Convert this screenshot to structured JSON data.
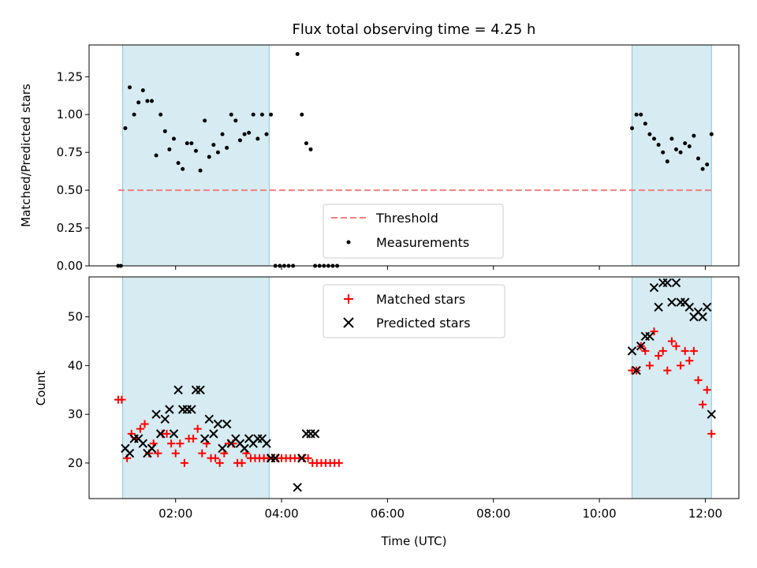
{
  "chart_data": [
    {
      "type": "scatter",
      "title": "Flux total observing time = 4.25 h",
      "xlabel": "",
      "ylabel": "Matched/Predicted stars",
      "x_unit": "hours UTC",
      "xlim": [
        "00:22",
        "12:38"
      ],
      "ylim": [
        0,
        1.46
      ],
      "yticks": [
        "0.00",
        "0.25",
        "0.50",
        "0.75",
        "1.00",
        "1.25"
      ],
      "legend_position": "lower-center",
      "shaded_intervals": [
        {
          "start": "01:00",
          "end": "03:46"
        },
        {
          "start": "10:37",
          "end": "12:07"
        }
      ],
      "threshold": {
        "name": "Threshold",
        "value": 0.5,
        "from": "00:55",
        "to": "12:07",
        "color": "#f08080",
        "style": "dashed"
      },
      "series": [
        {
          "name": "Measurements",
          "color": "#000000",
          "marker": "dot",
          "points": [
            [
              "00:55",
              0.0
            ],
            [
              "00:58",
              0.0
            ],
            [
              "01:03",
              0.91
            ],
            [
              "01:08",
              1.18
            ],
            [
              "01:13",
              1.0
            ],
            [
              "01:18",
              1.08
            ],
            [
              "01:23",
              1.16
            ],
            [
              "01:28",
              1.09
            ],
            [
              "01:33",
              1.09
            ],
            [
              "01:38",
              0.73
            ],
            [
              "01:43",
              1.0
            ],
            [
              "01:48",
              0.89
            ],
            [
              "01:53",
              0.77
            ],
            [
              "01:58",
              0.84
            ],
            [
              "02:03",
              0.68
            ],
            [
              "02:08",
              0.64
            ],
            [
              "02:13",
              0.81
            ],
            [
              "02:18",
              0.81
            ],
            [
              "02:23",
              0.76
            ],
            [
              "02:28",
              0.63
            ],
            [
              "02:33",
              0.96
            ],
            [
              "02:38",
              0.72
            ],
            [
              "02:43",
              0.8
            ],
            [
              "02:48",
              0.75
            ],
            [
              "02:53",
              0.87
            ],
            [
              "02:58",
              0.78
            ],
            [
              "03:03",
              1.0
            ],
            [
              "03:08",
              0.96
            ],
            [
              "03:13",
              0.83
            ],
            [
              "03:18",
              0.87
            ],
            [
              "03:23",
              0.88
            ],
            [
              "03:28",
              1.0
            ],
            [
              "03:33",
              0.84
            ],
            [
              "03:38",
              1.0
            ],
            [
              "03:43",
              0.87
            ],
            [
              "03:48",
              1.0
            ],
            [
              "03:53",
              0.0
            ],
            [
              "03:58",
              0.0
            ],
            [
              "04:03",
              0.0
            ],
            [
              "04:08",
              0.0
            ],
            [
              "04:13",
              0.0
            ],
            [
              "04:18",
              1.4
            ],
            [
              "04:23",
              1.0
            ],
            [
              "04:28",
              0.81
            ],
            [
              "04:33",
              0.77
            ],
            [
              "04:38",
              0.0
            ],
            [
              "04:43",
              0.0
            ],
            [
              "04:48",
              0.0
            ],
            [
              "04:53",
              0.0
            ],
            [
              "04:58",
              0.0
            ],
            [
              "05:03",
              0.0
            ],
            [
              "10:37",
              0.91
            ],
            [
              "10:42",
              1.0
            ],
            [
              "10:47",
              1.0
            ],
            [
              "10:52",
              0.94
            ],
            [
              "10:57",
              0.87
            ],
            [
              "11:02",
              0.84
            ],
            [
              "11:07",
              0.8
            ],
            [
              "11:12",
              0.75
            ],
            [
              "11:17",
              0.69
            ],
            [
              "11:22",
              0.84
            ],
            [
              "11:27",
              0.77
            ],
            [
              "11:32",
              0.75
            ],
            [
              "11:37",
              0.81
            ],
            [
              "11:42",
              0.79
            ],
            [
              "11:47",
              0.86
            ],
            [
              "11:52",
              0.71
            ],
            [
              "11:57",
              0.64
            ],
            [
              "12:02",
              0.67
            ],
            [
              "12:07",
              0.87
            ]
          ]
        }
      ]
    },
    {
      "type": "scatter",
      "title": "",
      "xlabel": "Time (UTC)",
      "ylabel": "Count",
      "x_unit": "hours UTC",
      "xlim": [
        "00:22",
        "12:38"
      ],
      "ylim": [
        12.7,
        58.2
      ],
      "xticks": [
        "02:00",
        "04:00",
        "06:00",
        "08:00",
        "10:00",
        "12:00"
      ],
      "yticks": [
        "20",
        "30",
        "40",
        "50"
      ],
      "legend_position": "upper-center",
      "shaded_intervals": [
        {
          "start": "01:00",
          "end": "03:46"
        },
        {
          "start": "10:37",
          "end": "12:07"
        }
      ],
      "series": [
        {
          "name": "Matched stars",
          "color": "#ff0000",
          "marker": "plus",
          "points": [
            [
              "00:55",
              33
            ],
            [
              "00:59",
              33
            ],
            [
              "01:05",
              21
            ],
            [
              "01:10",
              26
            ],
            [
              "01:15",
              25
            ],
            [
              "01:20",
              27
            ],
            [
              "01:25",
              28
            ],
            [
              "01:30",
              22
            ],
            [
              "01:35",
              24
            ],
            [
              "01:40",
              22
            ],
            [
              "01:45",
              26
            ],
            [
              "01:50",
              26
            ],
            [
              "01:55",
              24
            ],
            [
              "02:00",
              22
            ],
            [
              "02:05",
              24
            ],
            [
              "02:10",
              20
            ],
            [
              "02:15",
              25
            ],
            [
              "02:20",
              25
            ],
            [
              "02:25",
              27
            ],
            [
              "02:30",
              22
            ],
            [
              "02:35",
              24
            ],
            [
              "02:40",
              21
            ],
            [
              "02:45",
              21
            ],
            [
              "02:50",
              20
            ],
            [
              "02:55",
              22
            ],
            [
              "03:00",
              24
            ],
            [
              "03:05",
              24
            ],
            [
              "03:10",
              20
            ],
            [
              "03:15",
              20
            ],
            [
              "03:20",
              22
            ],
            [
              "03:25",
              21
            ],
            [
              "03:30",
              21
            ],
            [
              "03:35",
              21
            ],
            [
              "03:40",
              21
            ],
            [
              "03:45",
              21
            ],
            [
              "03:50",
              21
            ],
            [
              "03:55",
              21
            ],
            [
              "04:00",
              21
            ],
            [
              "04:05",
              21
            ],
            [
              "04:10",
              21
            ],
            [
              "04:15",
              21
            ],
            [
              "04:20",
              21
            ],
            [
              "04:25",
              21
            ],
            [
              "04:30",
              21
            ],
            [
              "04:35",
              20
            ],
            [
              "04:40",
              20
            ],
            [
              "04:45",
              20
            ],
            [
              "04:50",
              20
            ],
            [
              "04:55",
              20
            ],
            [
              "05:00",
              20
            ],
            [
              "05:05",
              20
            ],
            [
              "10:37",
              39
            ],
            [
              "10:42",
              39
            ],
            [
              "10:47",
              44
            ],
            [
              "10:52",
              43
            ],
            [
              "10:57",
              40
            ],
            [
              "11:02",
              47
            ],
            [
              "11:07",
              42
            ],
            [
              "11:12",
              43
            ],
            [
              "11:17",
              39
            ],
            [
              "11:22",
              45
            ],
            [
              "11:27",
              44
            ],
            [
              "11:32",
              40
            ],
            [
              "11:37",
              43
            ],
            [
              "11:42",
              41
            ],
            [
              "11:47",
              43
            ],
            [
              "11:52",
              37
            ],
            [
              "11:57",
              32
            ],
            [
              "12:02",
              35
            ],
            [
              "12:07",
              26
            ]
          ]
        },
        {
          "name": "Predicted stars",
          "color": "#000000",
          "marker": "x",
          "points": [
            [
              "01:03",
              23
            ],
            [
              "01:08",
              22
            ],
            [
              "01:13",
              25
            ],
            [
              "01:18",
              25
            ],
            [
              "01:23",
              24
            ],
            [
              "01:28",
              22
            ],
            [
              "01:33",
              23
            ],
            [
              "01:38",
              30
            ],
            [
              "01:43",
              26
            ],
            [
              "01:48",
              29
            ],
            [
              "01:53",
              31
            ],
            [
              "01:58",
              26
            ],
            [
              "02:03",
              35
            ],
            [
              "02:08",
              31
            ],
            [
              "02:13",
              31
            ],
            [
              "02:18",
              31
            ],
            [
              "02:23",
              35
            ],
            [
              "02:28",
              35
            ],
            [
              "02:33",
              25
            ],
            [
              "02:38",
              29
            ],
            [
              "02:43",
              26
            ],
            [
              "02:48",
              28
            ],
            [
              "02:53",
              23
            ],
            [
              "02:58",
              28
            ],
            [
              "03:03",
              24
            ],
            [
              "03:08",
              25
            ],
            [
              "03:13",
              24
            ],
            [
              "03:18",
              23
            ],
            [
              "03:23",
              25
            ],
            [
              "03:28",
              24
            ],
            [
              "03:33",
              25
            ],
            [
              "03:38",
              25
            ],
            [
              "03:43",
              24
            ],
            [
              "03:48",
              21
            ],
            [
              "03:53",
              21
            ],
            [
              "04:18",
              15
            ],
            [
              "04:23",
              21
            ],
            [
              "04:28",
              26
            ],
            [
              "04:33",
              26
            ],
            [
              "04:38",
              26
            ],
            [
              "10:37",
              43
            ],
            [
              "10:42",
              39
            ],
            [
              "10:47",
              44
            ],
            [
              "10:52",
              46
            ],
            [
              "10:57",
              46
            ],
            [
              "11:02",
              56
            ],
            [
              "11:07",
              52
            ],
            [
              "11:12",
              57
            ],
            [
              "11:17",
              57
            ],
            [
              "11:22",
              53
            ],
            [
              "11:27",
              57
            ],
            [
              "11:32",
              53
            ],
            [
              "11:37",
              53
            ],
            [
              "11:42",
              52
            ],
            [
              "11:47",
              50
            ],
            [
              "11:52",
              51
            ],
            [
              "11:57",
              50
            ],
            [
              "12:02",
              52
            ],
            [
              "12:07",
              30
            ]
          ]
        }
      ]
    }
  ]
}
